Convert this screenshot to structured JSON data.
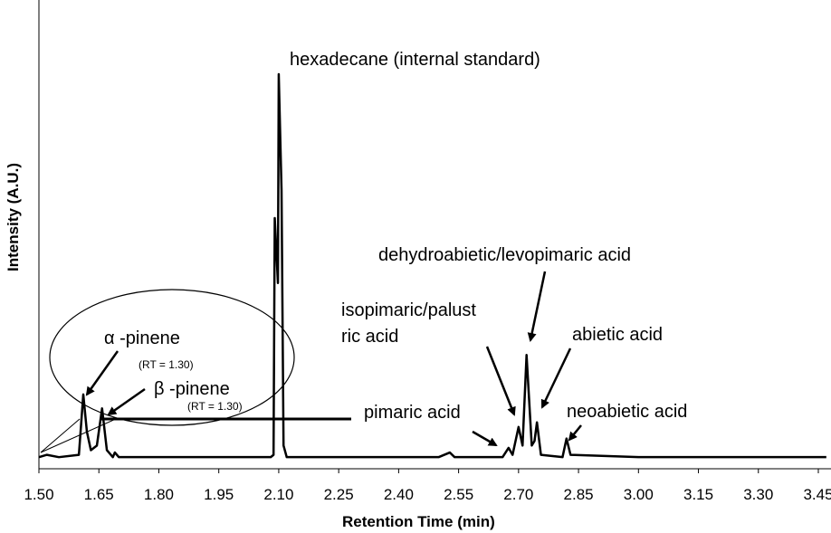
{
  "chart_data": {
    "type": "line",
    "x_label": "Retention Time (min)",
    "y_label": "Intensity (A.U.)",
    "color": "#000000",
    "xlim": [
      1.5,
      3.47
    ],
    "ylim": [
      0,
      100
    ],
    "xticks": [
      {
        "value": 1.5,
        "label": "1.50"
      },
      {
        "value": 1.65,
        "label": "1.65"
      },
      {
        "value": 1.8,
        "label": "1.80"
      },
      {
        "value": 1.95,
        "label": "1.95"
      },
      {
        "value": 2.1,
        "label": "2.10"
      },
      {
        "value": 2.25,
        "label": "2.25"
      },
      {
        "value": 2.4,
        "label": "2.40"
      },
      {
        "value": 2.55,
        "label": "2.55"
      },
      {
        "value": 2.7,
        "label": "2.70"
      },
      {
        "value": 2.85,
        "label": "2.85"
      },
      {
        "value": 3.0,
        "label": "3.00"
      },
      {
        "value": 3.15,
        "label": "3.15"
      },
      {
        "value": 3.3,
        "label": "3.30"
      },
      {
        "value": 3.45,
        "label": "3.45"
      }
    ],
    "x": [
      1.5,
      1.52,
      1.55,
      1.6,
      1.611,
      1.62,
      1.63,
      1.645,
      1.658,
      1.67,
      1.685,
      1.69,
      1.7,
      2.08,
      2.087,
      2.09,
      2.098,
      2.1,
      2.107,
      2.112,
      2.12,
      2.5,
      2.528,
      2.54,
      2.66,
      2.675,
      2.685,
      2.7,
      2.71,
      2.72,
      2.733,
      2.74,
      2.746,
      2.756,
      2.81,
      2.82,
      2.83,
      3.0,
      3.47
    ],
    "values": [
      2.5,
      3,
      2.5,
      3,
      16,
      8,
      4,
      5,
      13,
      4,
      2.5,
      3.5,
      2.5,
      2.5,
      3,
      54,
      40,
      85,
      60,
      5,
      2.5,
      2.5,
      3.5,
      2.5,
      2.5,
      4.5,
      3,
      9,
      5,
      24.5,
      5,
      6,
      10,
      3,
      2.5,
      6.5,
      3,
      2.5,
      2.5
    ],
    "annotations": [
      "hexadecane (internal standard)",
      "α -pinene",
      "(RT = 1.30)",
      "β -pinene",
      "(RT = 1.30)",
      "isopimaric/palust",
      "ric acid",
      "dehydroabietic/levopimaric acid",
      "abietic acid",
      "pimaric acid",
      "neoabietic acid"
    ]
  }
}
